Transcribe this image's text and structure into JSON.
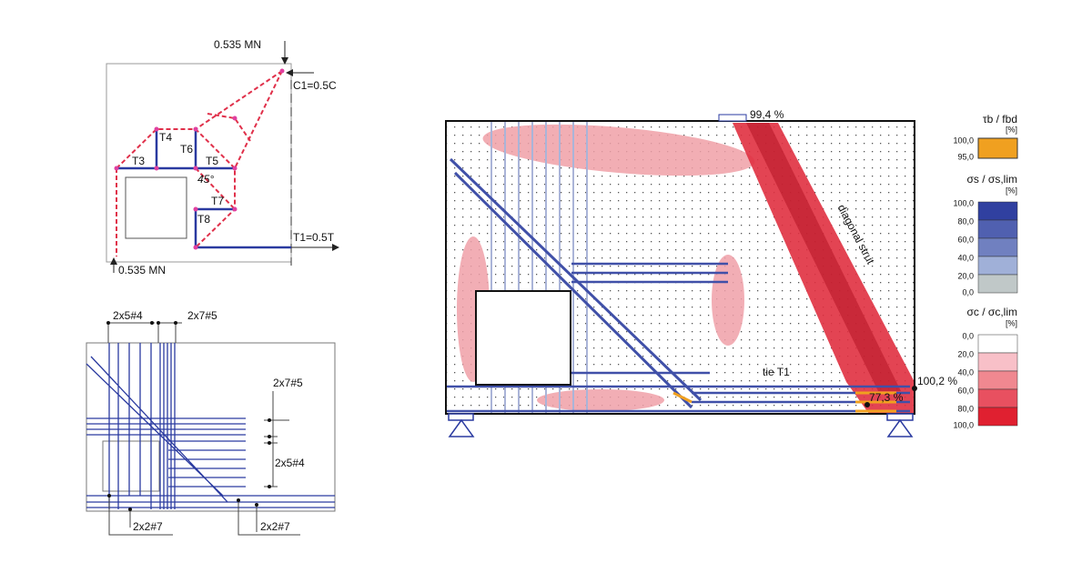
{
  "strut_tie_model": {
    "top_load": "0.535 MN",
    "compression": "C1=0.5C",
    "ties": [
      "T3",
      "T4",
      "T6",
      "T5",
      "T7",
      "T8"
    ],
    "angle": "45°",
    "tension": "T1=0.5T",
    "bottom_reaction": "0.535 MN"
  },
  "reinforcement_layout": {
    "labels": [
      "2x5#4",
      "2x7#5",
      "2x7#5",
      "2x5#4",
      "2x2#7",
      "2x2#7"
    ]
  },
  "fe_result": {
    "top": "99,4 %",
    "strut": "diagonal strut",
    "tie": "tie T1",
    "right": "100,2 %",
    "lower": "77,3 %"
  },
  "legend": {
    "bond": {
      "title": "τb / fbd",
      "unit": "[%]",
      "levels": [
        "100,0",
        "95,0"
      ]
    },
    "steel": {
      "title": "σs / σs,lim",
      "unit": "[%]",
      "levels": [
        "100,0",
        "80,0",
        "60,0",
        "40,0",
        "20,0",
        "0,0"
      ]
    },
    "concrete": {
      "title": "σc / σc,lim",
      "unit": "[%]",
      "levels": [
        "0,0",
        "20,0",
        "40,0",
        "60,0",
        "80,0",
        "100,0"
      ]
    }
  }
}
